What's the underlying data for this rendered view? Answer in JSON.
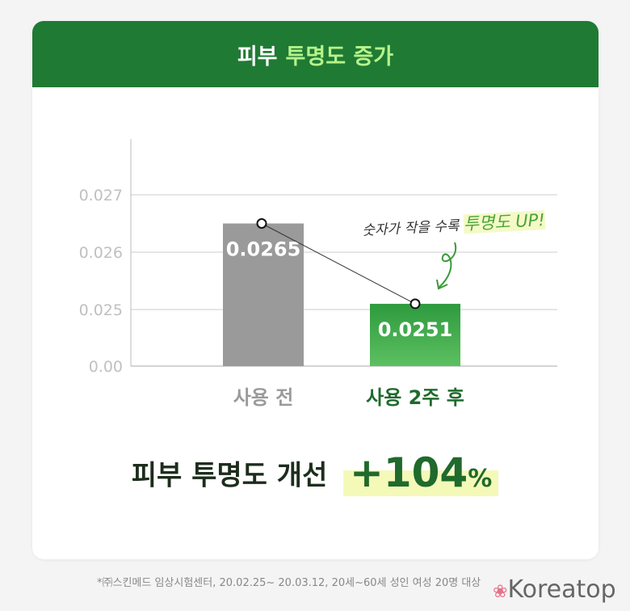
{
  "header": {
    "title_plain": "피부",
    "title_highlight": "투명도 증가"
  },
  "chart_data": {
    "type": "bar",
    "categories": [
      "사용 전",
      "사용 2주 후"
    ],
    "values": [
      0.0265,
      0.0251
    ],
    "data_labels": [
      "0.0265",
      "0.0251"
    ],
    "y_ticks": [
      "0.00",
      "0.025",
      "0.026",
      "0.027"
    ],
    "y_axis_break": true,
    "grid": true,
    "overlay_line": true,
    "colors": [
      "#9a9a9a",
      "#3aa046"
    ]
  },
  "annotation": {
    "text": "숫자가 작을 수록",
    "highlight": "투명도 UP!"
  },
  "result": {
    "label": "피부 투명도 개선",
    "value": "+104",
    "unit": "%"
  },
  "footnote": "*㈜스킨메드 임상시험센터, 20.02.25~ 20.03.12, 20세~60세 성인 여성 20명 대상",
  "watermark": "Koreatop"
}
